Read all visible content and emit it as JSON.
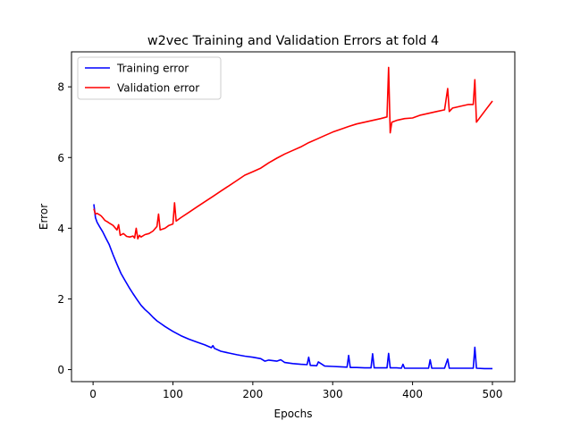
{
  "chart_data": {
    "type": "line",
    "title": "w2vec Training and Validation Errors at fold 4",
    "xlabel": "Epochs",
    "ylabel": "Error",
    "xlim": [
      -27,
      528
    ],
    "ylim": [
      -0.34,
      8.99
    ],
    "x_ticks": [
      0,
      100,
      200,
      300,
      400,
      500
    ],
    "y_ticks": [
      0,
      2,
      4,
      6,
      8
    ],
    "x_tick_labels": [
      "0",
      "100",
      "200",
      "300",
      "400",
      "500"
    ],
    "y_tick_labels": [
      "0",
      "2",
      "4",
      "6",
      "8"
    ],
    "grid": false,
    "legend_position": "top-left",
    "series": [
      {
        "name": "Training error",
        "color": "#0000ff",
        "x": [
          1,
          3,
          5,
          8,
          12,
          16,
          20,
          25,
          30,
          35,
          40,
          45,
          50,
          55,
          60,
          65,
          70,
          75,
          80,
          85,
          90,
          95,
          100,
          110,
          120,
          130,
          140,
          148,
          150,
          152,
          160,
          170,
          180,
          190,
          200,
          210,
          215,
          220,
          230,
          235,
          240,
          250,
          260,
          268,
          270,
          272,
          280,
          282,
          290,
          300,
          310,
          318,
          320,
          322,
          330,
          340,
          348,
          350,
          352,
          360,
          368,
          370,
          372,
          380,
          386,
          388,
          390,
          400,
          410,
          420,
          422,
          424,
          430,
          440,
          444,
          446,
          450,
          460,
          470,
          476,
          478,
          480,
          490,
          500
        ],
        "values": [
          4.68,
          4.3,
          4.17,
          4.05,
          3.9,
          3.72,
          3.55,
          3.25,
          2.98,
          2.72,
          2.52,
          2.33,
          2.15,
          1.98,
          1.82,
          1.7,
          1.6,
          1.48,
          1.38,
          1.3,
          1.22,
          1.15,
          1.08,
          0.96,
          0.86,
          0.78,
          0.7,
          0.62,
          0.68,
          0.6,
          0.52,
          0.47,
          0.42,
          0.38,
          0.35,
          0.31,
          0.24,
          0.27,
          0.24,
          0.28,
          0.2,
          0.17,
          0.15,
          0.14,
          0.35,
          0.12,
          0.11,
          0.22,
          0.1,
          0.09,
          0.08,
          0.07,
          0.4,
          0.06,
          0.06,
          0.05,
          0.05,
          0.45,
          0.05,
          0.05,
          0.05,
          0.46,
          0.05,
          0.05,
          0.04,
          0.15,
          0.04,
          0.04,
          0.04,
          0.04,
          0.28,
          0.04,
          0.04,
          0.04,
          0.3,
          0.04,
          0.04,
          0.04,
          0.04,
          0.04,
          0.63,
          0.04,
          0.03,
          0.03
        ]
      },
      {
        "name": "Validation error",
        "color": "#ff0000",
        "x": [
          1,
          3,
          5,
          8,
          10,
          12,
          15,
          18,
          20,
          25,
          30,
          32,
          34,
          38,
          42,
          46,
          50,
          52,
          54,
          56,
          58,
          60,
          65,
          70,
          75,
          80,
          82,
          84,
          90,
          95,
          100,
          102,
          104,
          110,
          120,
          130,
          140,
          150,
          160,
          170,
          180,
          190,
          200,
          210,
          220,
          230,
          240,
          250,
          260,
          270,
          280,
          290,
          300,
          310,
          320,
          330,
          340,
          350,
          360,
          368,
          370,
          372,
          374,
          380,
          390,
          400,
          410,
          420,
          430,
          440,
          444,
          446,
          450,
          460,
          470,
          476,
          478,
          480,
          490,
          500
        ],
        "values": [
          4.55,
          4.4,
          4.42,
          4.38,
          4.35,
          4.3,
          4.22,
          4.18,
          4.15,
          4.08,
          3.95,
          4.1,
          3.8,
          3.85,
          3.77,
          3.75,
          3.78,
          3.72,
          4.0,
          3.7,
          3.8,
          3.75,
          3.82,
          3.85,
          3.92,
          4.05,
          4.4,
          3.95,
          4.0,
          4.08,
          4.12,
          4.72,
          4.2,
          4.3,
          4.45,
          4.6,
          4.75,
          4.9,
          5.05,
          5.2,
          5.35,
          5.5,
          5.6,
          5.7,
          5.85,
          5.98,
          6.1,
          6.2,
          6.3,
          6.42,
          6.52,
          6.62,
          6.72,
          6.8,
          6.88,
          6.95,
          7.0,
          7.05,
          7.1,
          7.15,
          8.55,
          6.7,
          7.0,
          7.05,
          7.1,
          7.12,
          7.2,
          7.25,
          7.3,
          7.35,
          7.95,
          7.3,
          7.4,
          7.45,
          7.5,
          7.5,
          8.2,
          7.0,
          7.3,
          7.6
        ]
      }
    ]
  }
}
